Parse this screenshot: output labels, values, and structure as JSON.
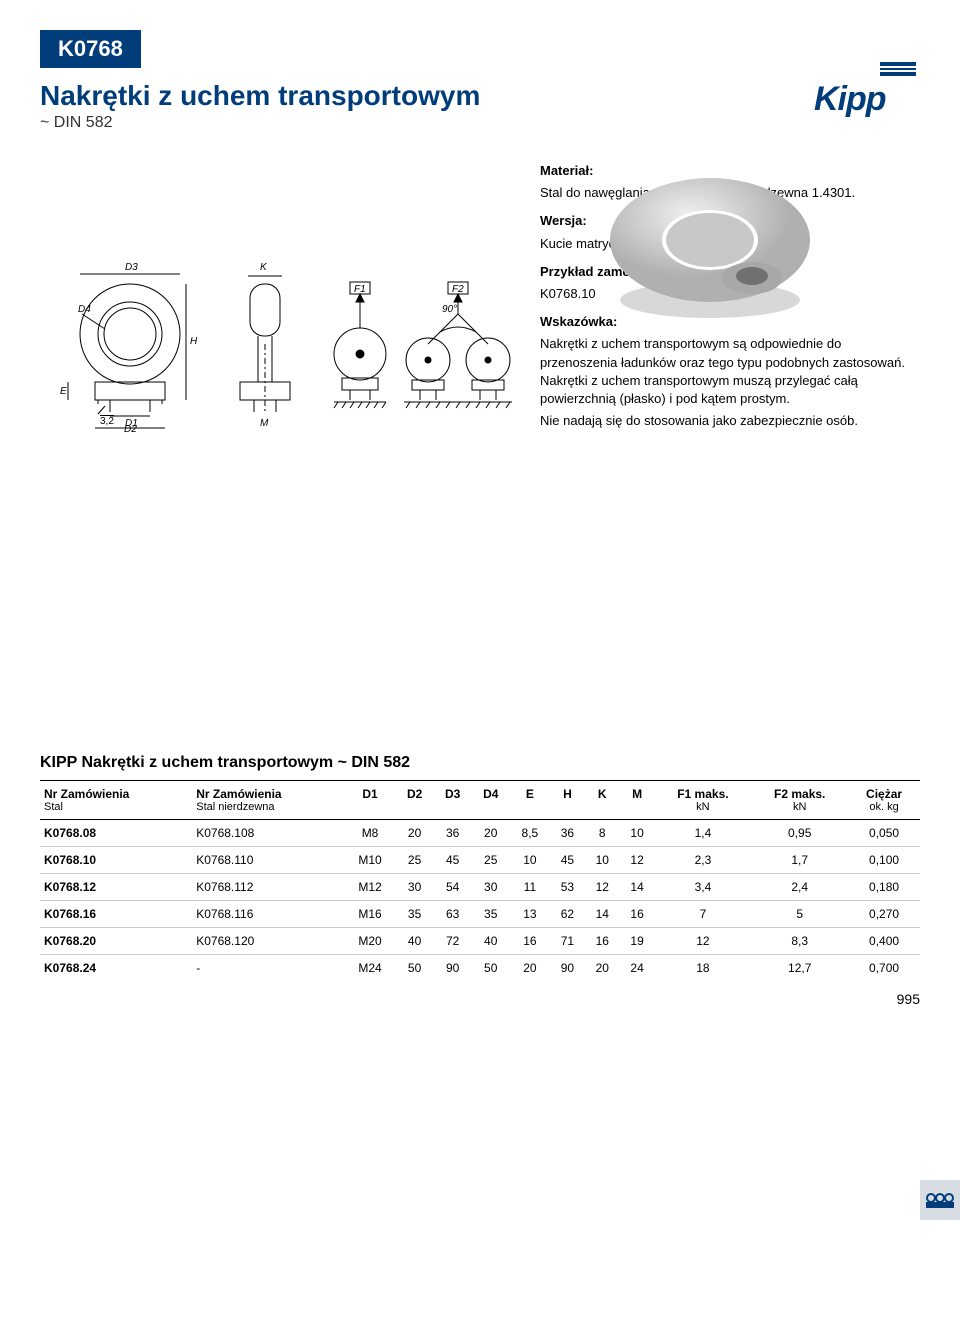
{
  "header": {
    "code": "K0768",
    "title": "Nakrętki z uchem transportowym",
    "subtitle": "~ DIN 582",
    "brand": "Kipp"
  },
  "diagram_labels": {
    "D3": "D3",
    "K": "K",
    "F1": "F1",
    "F2": "F2",
    "angle": "90°",
    "D4": "D4",
    "H": "H",
    "E": "E",
    "chamfer": "3,2",
    "D1": "D1",
    "D2": "D2",
    "M": "M"
  },
  "info": {
    "material_label": "Materiał:",
    "material_text": "Stal do nawęglania 1.0401 lub stal nierdzewna 1.4301.",
    "version_label": "Wersja:",
    "version_text": "Kucie matrycowe",
    "order_label": "Przykład zamówienia:",
    "order_text": "K0768.10",
    "hint_label": "Wskazówka:",
    "hint_text": "Nakrętki z uchem transportowym są odpowiednie do przenoszenia ładunków oraz tego typu podobnych zastosowań. Nakrętki z uchem transportowym muszą przylegać całą powierzchnią (płasko) i pod kątem prostym.",
    "hint_text2": "Nie nadają się do stosowania jako zabezpiecznie osób."
  },
  "table": {
    "title": "KIPP Nakrętki z uchem transportowym ~ DIN 582",
    "columns": [
      {
        "h": "Nr Zamówienia",
        "sub": "Stal"
      },
      {
        "h": "Nr Zamówienia",
        "sub": "Stal nierdzewna"
      },
      {
        "h": "D1"
      },
      {
        "h": "D2"
      },
      {
        "h": "D3"
      },
      {
        "h": "D4"
      },
      {
        "h": "E"
      },
      {
        "h": "H"
      },
      {
        "h": "K"
      },
      {
        "h": "M"
      },
      {
        "h": "F1 maks.",
        "sub": "kN"
      },
      {
        "h": "F2 maks.",
        "sub": "kN"
      },
      {
        "h": "Ciężar",
        "sub": "ok. kg"
      }
    ],
    "rows": [
      [
        "K0768.08",
        "K0768.108",
        "M8",
        "20",
        "36",
        "20",
        "8,5",
        "36",
        "8",
        "10",
        "1,4",
        "0,95",
        "0,050"
      ],
      [
        "K0768.10",
        "K0768.110",
        "M10",
        "25",
        "45",
        "25",
        "10",
        "45",
        "10",
        "12",
        "2,3",
        "1,7",
        "0,100"
      ],
      [
        "K0768.12",
        "K0768.112",
        "M12",
        "30",
        "54",
        "30",
        "11",
        "53",
        "12",
        "14",
        "3,4",
        "2,4",
        "0,180"
      ],
      [
        "K0768.16",
        "K0768.116",
        "M16",
        "35",
        "63",
        "35",
        "13",
        "62",
        "14",
        "16",
        "7",
        "5",
        "0,270"
      ],
      [
        "K0768.20",
        "K0768.120",
        "M20",
        "40",
        "72",
        "40",
        "16",
        "71",
        "16",
        "19",
        "12",
        "8,3",
        "0,400"
      ],
      [
        "K0768.24",
        "-",
        "M24",
        "50",
        "90",
        "50",
        "20",
        "90",
        "20",
        "24",
        "18",
        "12,7",
        "0,700"
      ]
    ]
  },
  "page_number": "995",
  "colors": {
    "brand": "#003d7a",
    "text": "#000000",
    "row_border": "#cccccc"
  }
}
